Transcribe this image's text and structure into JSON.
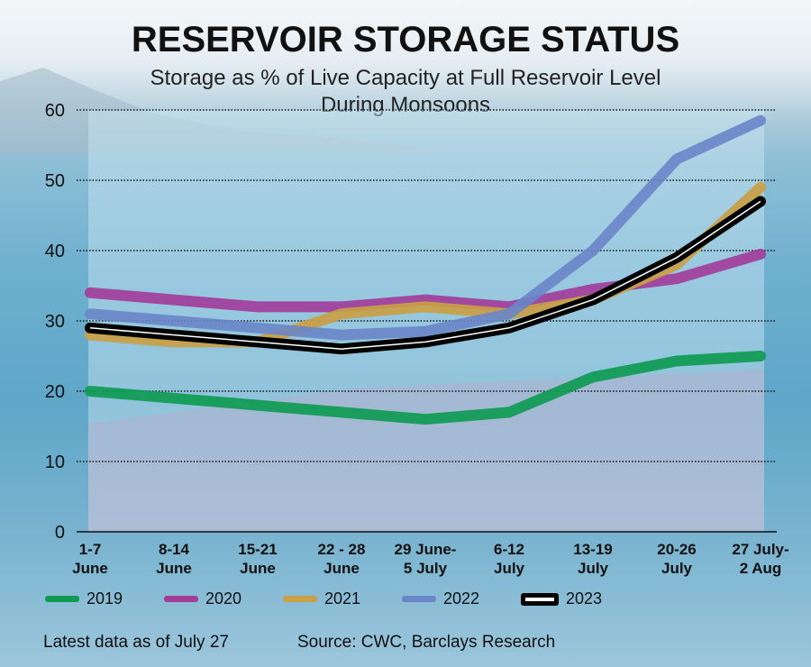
{
  "chart_data": {
    "type": "line",
    "title": "RESERVOIR STORAGE STATUS",
    "subtitle": "Storage as % of Live Capacity at Full Reservoir Level During Monsoons",
    "xlabel": "",
    "ylabel": "",
    "ylim": [
      0,
      60
    ],
    "yticks": [
      "0",
      "10",
      "20",
      "30",
      "40",
      "50",
      "60"
    ],
    "categories": [
      [
        "1-7",
        "June"
      ],
      [
        "8-14",
        "June"
      ],
      [
        "15-21",
        "June"
      ],
      [
        "22 - 28",
        "June"
      ],
      [
        "29 June-",
        "5 July"
      ],
      [
        "6-12",
        "July"
      ],
      [
        "13-19",
        "July"
      ],
      [
        "20-26",
        "July"
      ],
      [
        "27 July-",
        "2 Aug"
      ]
    ],
    "series": [
      {
        "name": "2019",
        "color": "#0f9a52",
        "values": [
          20,
          19,
          18,
          17,
          16,
          17,
          22,
          24.3,
          25
        ]
      },
      {
        "name": "2020",
        "color": "#a23e9a",
        "values": [
          34,
          33,
          32,
          32,
          33,
          32,
          34.5,
          36,
          39.5
        ]
      },
      {
        "name": "2021",
        "color": "#c9a046",
        "values": [
          28,
          27,
          27,
          31,
          32,
          31,
          33,
          38,
          49
        ]
      },
      {
        "name": "2022",
        "color": "#6a85c8",
        "values": [
          31,
          30,
          29,
          28,
          28.5,
          31,
          40,
          53,
          58.5
        ]
      },
      {
        "name": "2023",
        "color": "#000000",
        "values": [
          29,
          28,
          27,
          26,
          27,
          29,
          33,
          39,
          47
        ]
      }
    ],
    "grid": true,
    "legend": "bottom"
  },
  "footer": {
    "note": "Latest data as of July 27",
    "source": "Source: CWC, Barclays Research"
  }
}
